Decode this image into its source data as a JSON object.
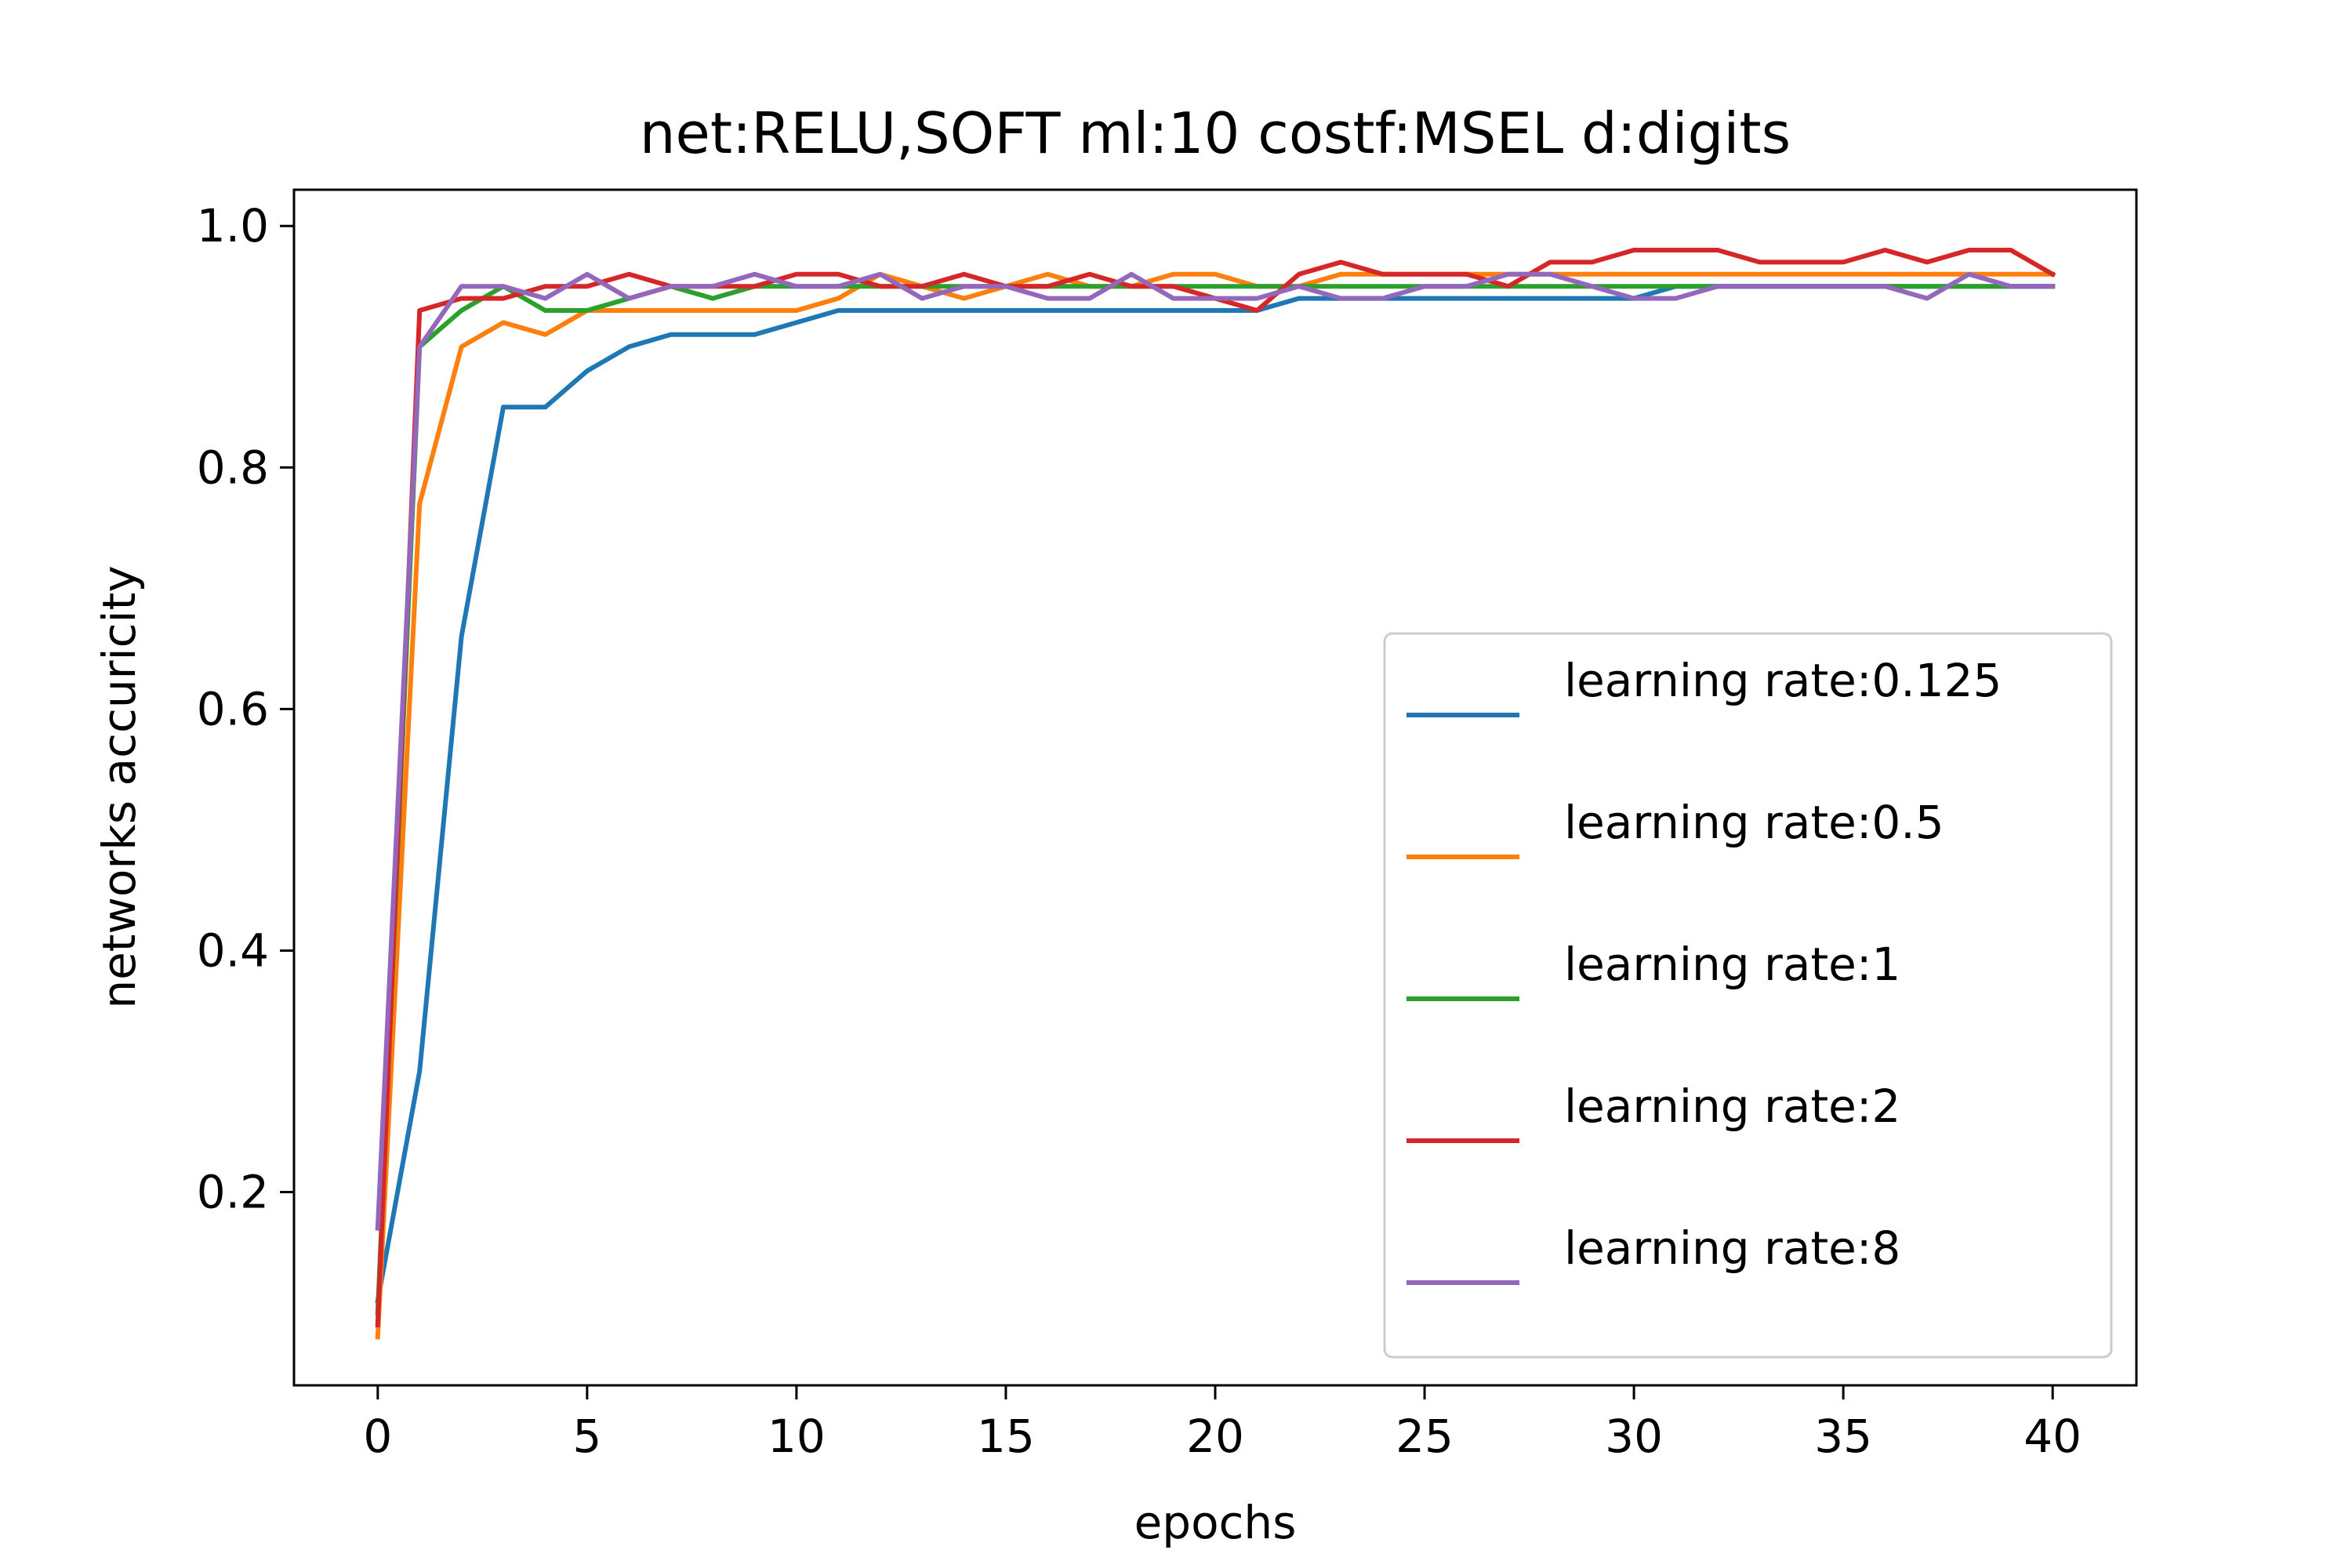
{
  "chart_data": {
    "type": "line",
    "title": "net:RELU,SOFT ml:10 costf:MSEL d:digits",
    "xlabel": "epochs",
    "ylabel": "networks accuricity",
    "xlim": [
      -2,
      42
    ],
    "ylim": [
      0.04,
      1.03
    ],
    "xticks": [
      0,
      5,
      10,
      15,
      20,
      25,
      30,
      35,
      40
    ],
    "yticks": [
      0.2,
      0.4,
      0.6,
      0.8,
      1.0
    ],
    "ytick_labels": [
      "0.2",
      "0.4",
      "0.6",
      "0.8",
      "1.0"
    ],
    "grid": false,
    "legend_position": "lower-right",
    "x": [
      0,
      1,
      2,
      3,
      4,
      5,
      6,
      7,
      8,
      9,
      10,
      11,
      12,
      13,
      14,
      15,
      16,
      17,
      18,
      19,
      20,
      21,
      22,
      23,
      24,
      25,
      26,
      27,
      28,
      29,
      30,
      31,
      32,
      33,
      34,
      35,
      36,
      37,
      38,
      39,
      40
    ],
    "series": [
      {
        "name": "learning rate:0.125",
        "color": "#1f77b4",
        "values": [
          0.11,
          0.3,
          0.66,
          0.85,
          0.85,
          0.88,
          0.9,
          0.91,
          0.91,
          0.91,
          0.92,
          0.93,
          0.93,
          0.93,
          0.93,
          0.93,
          0.93,
          0.93,
          0.93,
          0.93,
          0.93,
          0.93,
          0.94,
          0.94,
          0.94,
          0.94,
          0.94,
          0.94,
          0.94,
          0.94,
          0.94,
          0.95,
          0.95,
          0.95,
          0.95,
          0.95,
          0.95,
          0.95,
          0.95,
          0.95,
          0.95
        ]
      },
      {
        "name": "learning rate:0.5",
        "color": "#ff7f0e",
        "values": [
          0.08,
          0.77,
          0.9,
          0.92,
          0.91,
          0.93,
          0.93,
          0.93,
          0.93,
          0.93,
          0.93,
          0.94,
          0.96,
          0.95,
          0.94,
          0.95,
          0.96,
          0.95,
          0.95,
          0.96,
          0.96,
          0.95,
          0.95,
          0.96,
          0.96,
          0.96,
          0.96,
          0.96,
          0.96,
          0.96,
          0.96,
          0.96,
          0.96,
          0.96,
          0.96,
          0.96,
          0.96,
          0.96,
          0.96,
          0.96,
          0.96
        ]
      },
      {
        "name": "learning rate:1",
        "color": "#2ca02c",
        "values": [
          0.1,
          0.9,
          0.93,
          0.95,
          0.93,
          0.93,
          0.94,
          0.95,
          0.94,
          0.95,
          0.95,
          0.95,
          0.95,
          0.95,
          0.95,
          0.95,
          0.95,
          0.95,
          0.95,
          0.95,
          0.95,
          0.95,
          0.95,
          0.95,
          0.95,
          0.95,
          0.95,
          0.95,
          0.95,
          0.95,
          0.95,
          0.95,
          0.95,
          0.95,
          0.95,
          0.95,
          0.95,
          0.95,
          0.95,
          0.95,
          0.95
        ]
      },
      {
        "name": "learning rate:2",
        "color": "#d62728",
        "values": [
          0.09,
          0.93,
          0.94,
          0.94,
          0.95,
          0.95,
          0.96,
          0.95,
          0.95,
          0.95,
          0.96,
          0.96,
          0.95,
          0.95,
          0.96,
          0.95,
          0.95,
          0.96,
          0.95,
          0.95,
          0.94,
          0.93,
          0.96,
          0.97,
          0.96,
          0.96,
          0.96,
          0.95,
          0.97,
          0.97,
          0.98,
          0.98,
          0.98,
          0.97,
          0.97,
          0.97,
          0.98,
          0.97,
          0.98,
          0.98,
          0.96
        ]
      },
      {
        "name": "learning rate:8",
        "color": "#9467bd",
        "values": [
          0.17,
          0.9,
          0.95,
          0.95,
          0.94,
          0.96,
          0.94,
          0.95,
          0.95,
          0.96,
          0.95,
          0.95,
          0.96,
          0.94,
          0.95,
          0.95,
          0.94,
          0.94,
          0.96,
          0.94,
          0.94,
          0.94,
          0.95,
          0.94,
          0.94,
          0.95,
          0.95,
          0.96,
          0.96,
          0.95,
          0.94,
          0.94,
          0.95,
          0.95,
          0.95,
          0.95,
          0.95,
          0.94,
          0.96,
          0.95,
          0.95
        ]
      }
    ]
  }
}
